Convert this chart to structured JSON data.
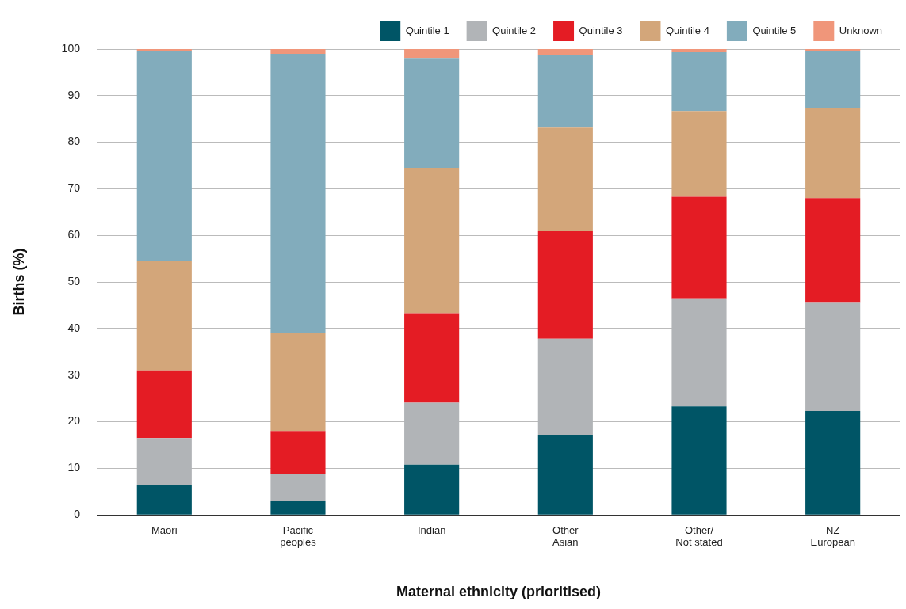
{
  "chart_data": {
    "type": "bar",
    "stacked": true,
    "xlabel": "Maternal ethnicity (prioritised)",
    "ylabel": "Births (%)",
    "categories": [
      "Māori",
      "Pacific\npeoples",
      "Indian",
      "Other\nAsian",
      "Other/\nNot stated",
      "NZ\nEuropean"
    ],
    "series": [
      {
        "name": "Quintile 1",
        "color": "#005566",
        "values": [
          6.4,
          3.0,
          10.8,
          17.2,
          23.3,
          22.3
        ]
      },
      {
        "name": "Quintile 2",
        "color": "#b1b4b7",
        "values": [
          10.1,
          5.8,
          13.3,
          20.6,
          23.2,
          23.4
        ]
      },
      {
        "name": "Quintile 3",
        "color": "#e41c24",
        "values": [
          14.5,
          9.2,
          19.2,
          23.1,
          21.8,
          22.3
        ]
      },
      {
        "name": "Quintile 4",
        "color": "#d3a67a",
        "values": [
          23.5,
          21.1,
          31.2,
          22.4,
          18.4,
          19.4
        ]
      },
      {
        "name": "Quintile 5",
        "color": "#82acbc",
        "values": [
          45.0,
          59.9,
          23.6,
          15.5,
          12.6,
          12.1
        ]
      },
      {
        "name": "Unknown",
        "color": "#f0967a",
        "values": [
          0.5,
          1.0,
          1.9,
          1.2,
          0.7,
          0.5
        ]
      }
    ],
    "ylim": [
      0,
      100
    ],
    "yticks": [
      0,
      10,
      20,
      30,
      40,
      50,
      60,
      70,
      80,
      90,
      100
    ],
    "grid": "y",
    "legend": "top right"
  }
}
